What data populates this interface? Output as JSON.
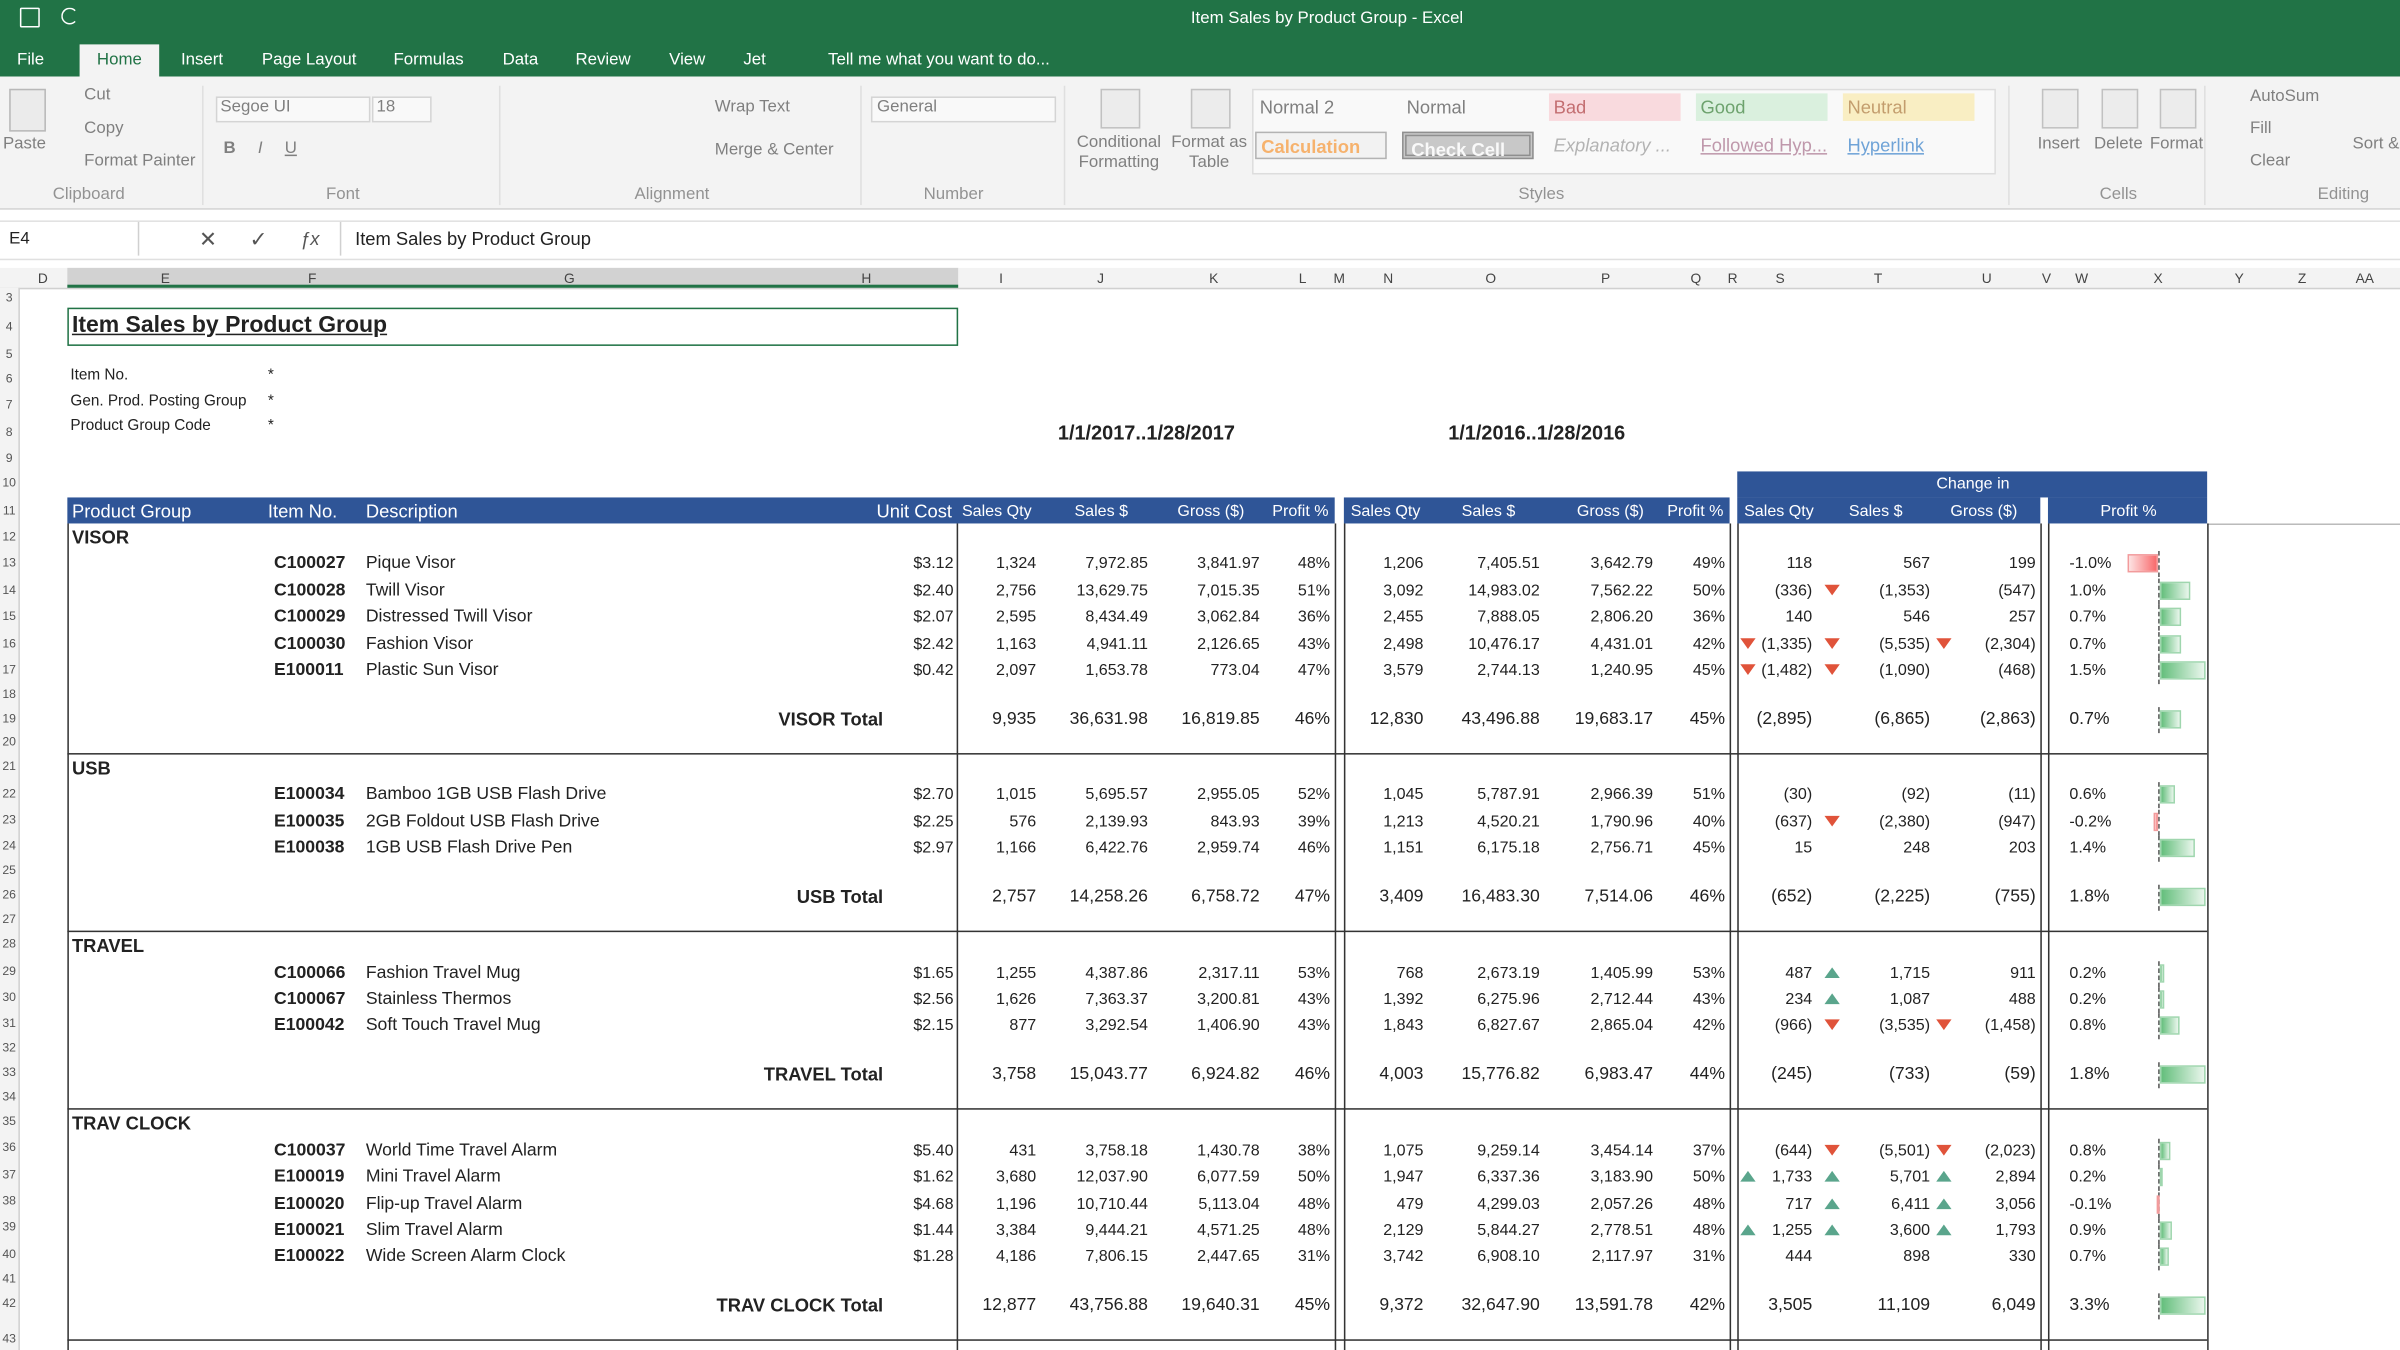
{
  "window": {
    "title": "Item Sales by Product Group - Excel"
  },
  "tabs": [
    "File",
    "Home",
    "Insert",
    "Page Layout",
    "Formulas",
    "Data",
    "Review",
    "View",
    "Jet"
  ],
  "tell_me": "Tell me what you want to do...",
  "ribbon": {
    "clipboard": {
      "label": "Clipboard",
      "paste": "Paste",
      "cut": "Cut",
      "copy": "Copy",
      "format_painter": "Format Painter"
    },
    "font": {
      "label": "Font",
      "name": "Segoe UI",
      "size": "18"
    },
    "alignment": {
      "label": "Alignment",
      "wrap_text": "Wrap Text",
      "merge_center": "Merge & Center"
    },
    "number": {
      "label": "Number",
      "format": "General"
    },
    "styles": {
      "label": "Styles",
      "conditional_formatting": "Conditional Formatting",
      "format_as_table": "Format as Table",
      "cell_styles": [
        "Normal 2",
        "Normal",
        "Bad",
        "Good",
        "Neutral",
        "Calculation",
        "Check Cell",
        "Explanatory ...",
        "Followed Hyp...",
        "Hyperlink"
      ]
    },
    "cells": {
      "label": "Cells",
      "insert": "Insert",
      "delete": "Delete",
      "format": "Format"
    },
    "editing": {
      "label": "Editing",
      "autosum": "AutoSum",
      "fill": "Fill",
      "clear": "Clear",
      "sort_filter": "Sort & Filter"
    }
  },
  "formula_bar": {
    "name_box": "E4",
    "content": "Item Sales by Product Group"
  },
  "columns": [
    "D",
    "E",
    "F",
    "G",
    "H",
    "I",
    "J",
    "K",
    "L",
    "M",
    "N",
    "O",
    "P",
    "Q",
    "R",
    "S",
    "T",
    "U",
    "V",
    "W",
    "X",
    "Y",
    "Z",
    "AA"
  ],
  "row_numbers": [
    3,
    4,
    5,
    6,
    7,
    8,
    9,
    10,
    11,
    12,
    13,
    14,
    15,
    16,
    17,
    18,
    19,
    20,
    21,
    22,
    23,
    24,
    25,
    26,
    27,
    28,
    29,
    30,
    31,
    32,
    33,
    34,
    35,
    36,
    37,
    38,
    39,
    40,
    41,
    42,
    43
  ],
  "sheet": {
    "title": "Item Sales by Product Group",
    "filters": [
      {
        "label": "Item No.",
        "value": "*"
      },
      {
        "label": "Gen. Prod. Posting Group",
        "value": "*"
      },
      {
        "label": "Product Group Code",
        "value": "*"
      }
    ],
    "periods": [
      "1/1/2017..1/28/2017",
      "1/1/2016..1/28/2016"
    ],
    "change_header": "Change in",
    "headers": [
      "Product Group",
      "Item No.",
      "Description",
      "Unit Cost",
      "Sales Qty",
      "Sales $",
      "Gross ($)",
      "Profit %",
      "Sales Qty",
      "Sales $",
      "Gross ($)",
      "Profit %",
      "Sales Qty",
      "Sales $",
      "Gross ($)",
      "Profit %"
    ],
    "groups": [
      {
        "name": "VISOR",
        "items": [
          [
            "C100027",
            "Pique Visor",
            "$3.12",
            "1,324",
            "7,972.85",
            "3,841.97",
            "48%",
            "1,206",
            "7,405.51",
            "3,642.79",
            "49%",
            "118",
            "567",
            "199",
            "-1.0%"
          ],
          [
            "C100028",
            "Twill Visor",
            "$2.40",
            "2,756",
            "13,629.75",
            "7,015.35",
            "51%",
            "3,092",
            "14,983.02",
            "7,562.22",
            "50%",
            "(336)",
            "(1,353)",
            "(547)",
            "1.0%"
          ],
          [
            "C100029",
            "Distressed Twill Visor",
            "$2.07",
            "2,595",
            "8,434.49",
            "3,062.84",
            "36%",
            "2,455",
            "7,888.05",
            "2,806.20",
            "36%",
            "140",
            "546",
            "257",
            "0.7%"
          ],
          [
            "C100030",
            "Fashion Visor",
            "$2.42",
            "1,163",
            "4,941.11",
            "2,126.65",
            "43%",
            "2,498",
            "10,476.17",
            "4,431.01",
            "42%",
            "(1,335)",
            "(5,535)",
            "(2,304)",
            "0.7%"
          ],
          [
            "E100011",
            "Plastic Sun Visor",
            "$0.42",
            "2,097",
            "1,653.78",
            "773.04",
            "47%",
            "3,579",
            "2,744.13",
            "1,240.95",
            "45%",
            "(1,482)",
            "(1,090)",
            "(468)",
            "1.5%"
          ]
        ],
        "total": [
          "VISOR Total",
          "9,935",
          "36,631.98",
          "16,819.85",
          "46%",
          "12,830",
          "43,496.88",
          "19,683.17",
          "45%",
          "(2,895)",
          "(6,865)",
          "(2,863)",
          "0.7%"
        ]
      },
      {
        "name": "USB",
        "items": [
          [
            "E100034",
            "Bamboo 1GB USB Flash Drive",
            "$2.70",
            "1,015",
            "5,695.57",
            "2,955.05",
            "52%",
            "1,045",
            "5,787.91",
            "2,966.39",
            "51%",
            "(30)",
            "(92)",
            "(11)",
            "0.6%"
          ],
          [
            "E100035",
            "2GB Foldout USB Flash Drive",
            "$2.25",
            "576",
            "2,139.93",
            "843.93",
            "39%",
            "1,213",
            "4,520.21",
            "1,790.96",
            "40%",
            "(637)",
            "(2,380)",
            "(947)",
            "-0.2%"
          ],
          [
            "E100038",
            "1GB USB Flash Drive Pen",
            "$2.97",
            "1,166",
            "6,422.76",
            "2,959.74",
            "46%",
            "1,151",
            "6,175.18",
            "2,756.71",
            "45%",
            "15",
            "248",
            "203",
            "1.4%"
          ]
        ],
        "total": [
          "USB Total",
          "2,757",
          "14,258.26",
          "6,758.72",
          "47%",
          "3,409",
          "16,483.30",
          "7,514.06",
          "46%",
          "(652)",
          "(2,225)",
          "(755)",
          "1.8%"
        ]
      },
      {
        "name": "TRAVEL",
        "items": [
          [
            "C100066",
            "Fashion Travel Mug",
            "$1.65",
            "1,255",
            "4,387.86",
            "2,317.11",
            "53%",
            "768",
            "2,673.19",
            "1,405.99",
            "53%",
            "487",
            "1,715",
            "911",
            "0.2%"
          ],
          [
            "C100067",
            "Stainless Thermos",
            "$2.56",
            "1,626",
            "7,363.37",
            "3,200.81",
            "43%",
            "1,392",
            "6,275.96",
            "2,712.44",
            "43%",
            "234",
            "1,087",
            "488",
            "0.2%"
          ],
          [
            "E100042",
            "Soft Touch Travel Mug",
            "$2.15",
            "877",
            "3,292.54",
            "1,406.90",
            "43%",
            "1,843",
            "6,827.67",
            "2,865.04",
            "42%",
            "(966)",
            "(3,535)",
            "(1,458)",
            "0.8%"
          ]
        ],
        "total": [
          "TRAVEL Total",
          "3,758",
          "15,043.77",
          "6,924.82",
          "46%",
          "4,003",
          "15,776.82",
          "6,983.47",
          "44%",
          "(245)",
          "(733)",
          "(59)",
          "1.8%"
        ]
      },
      {
        "name": "TRAV CLOCK",
        "items": [
          [
            "C100037",
            "World Time Travel Alarm",
            "$5.40",
            "431",
            "3,758.18",
            "1,430.78",
            "38%",
            "1,075",
            "9,259.14",
            "3,454.14",
            "37%",
            "(644)",
            "(5,501)",
            "(2,023)",
            "0.8%"
          ],
          [
            "E100019",
            "Mini Travel Alarm",
            "$1.62",
            "3,680",
            "12,037.90",
            "6,077.59",
            "50%",
            "1,947",
            "6,337.36",
            "3,183.90",
            "50%",
            "1,733",
            "5,701",
            "2,894",
            "0.2%"
          ],
          [
            "E100020",
            "Flip-up Travel Alarm",
            "$4.68",
            "1,196",
            "10,710.44",
            "5,113.04",
            "48%",
            "479",
            "4,299.03",
            "2,057.26",
            "48%",
            "717",
            "6,411",
            "3,056",
            "-0.1%"
          ],
          [
            "E100021",
            "Slim Travel Alarm",
            "$1.44",
            "3,384",
            "9,444.21",
            "4,571.25",
            "48%",
            "2,129",
            "5,844.27",
            "2,778.51",
            "48%",
            "1,255",
            "3,600",
            "1,793",
            "0.9%"
          ],
          [
            "E100022",
            "Wide Screen Alarm Clock",
            "$1.28",
            "4,186",
            "7,806.15",
            "2,447.65",
            "31%",
            "3,742",
            "6,908.10",
            "2,117.97",
            "31%",
            "444",
            "898",
            "330",
            "0.7%"
          ]
        ],
        "total": [
          "TRAV CLOCK Total",
          "12,877",
          "43,756.88",
          "19,640.31",
          "45%",
          "9,372",
          "32,647.90",
          "13,591.78",
          "42%",
          "3,505",
          "11,109",
          "6,049",
          "3.3%"
        ]
      }
    ]
  }
}
